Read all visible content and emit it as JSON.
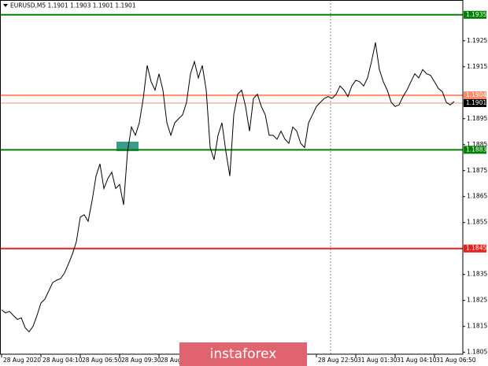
{
  "chart_data": {
    "type": "line",
    "title": "EURUSD,M5  1.1901 1.1903 1.1901 1.1901",
    "watermark": "instaforex",
    "xlim": [
      -0.4,
      117.2
    ],
    "xticks": [
      {
        "value": 0,
        "label": "28 Aug 2020"
      },
      {
        "value": 10,
        "label": "28 Aug 04:10"
      },
      {
        "value": 20,
        "label": "28 Aug 06:50"
      },
      {
        "value": 30,
        "label": "28 Aug 09:30"
      },
      {
        "value": 40,
        "label": "28 Aug"
      },
      {
        "value": 80,
        "label": "28 Aug 22:50"
      },
      {
        "value": 90,
        "label": "31 Aug 01:30"
      },
      {
        "value": 100,
        "label": "31 Aug 04:10"
      },
      {
        "value": 110,
        "label": "31 Aug 06:50"
      }
    ],
    "ylim": [
      1.18043,
      1.19407
    ],
    "yticks": [
      1.1925,
      1.1915,
      1.1895,
      1.1885,
      1.1875,
      1.1865,
      1.1855,
      1.1835,
      1.1825,
      1.1815,
      1.1805
    ],
    "series": [
      {
        "color": "#000000",
        "values": [
          1.18214,
          1.18202,
          1.18208,
          1.18192,
          1.18177,
          1.18183,
          1.18145,
          1.18129,
          1.18151,
          1.18192,
          1.1824,
          1.18255,
          1.18287,
          1.18319,
          1.18328,
          1.18334,
          1.18356,
          1.18391,
          1.18429,
          1.18476,
          1.18571,
          1.1858,
          1.18555,
          1.18634,
          1.18729,
          1.18776,
          1.18681,
          1.18719,
          1.18744,
          1.18681,
          1.18697,
          1.18618,
          1.18823,
          1.18918,
          1.18886,
          1.18934,
          1.19028,
          1.19155,
          1.19092,
          1.1906,
          1.19123,
          1.1906,
          1.18934,
          1.18886,
          1.18934,
          1.1895,
          1.18965,
          1.19013,
          1.19123,
          1.1917,
          1.19107,
          1.19155,
          1.1906,
          1.18839,
          1.18792,
          1.18886,
          1.18934,
          1.18823,
          1.18729,
          1.18965,
          1.19044,
          1.1906,
          1.18997,
          1.18902,
          1.19028,
          1.19044,
          1.18997,
          1.18965,
          1.18886,
          1.18886,
          1.18871,
          1.18902,
          1.18871,
          1.18855,
          1.18918,
          1.18902,
          1.18855,
          1.18839,
          1.18934,
          1.18965,
          1.18997,
          1.19013,
          1.19028,
          1.19035,
          1.19028,
          1.19044,
          1.19076,
          1.1906,
          1.19035,
          1.19076,
          1.19098,
          1.19092,
          1.19076,
          1.19107,
          1.1917,
          1.19243,
          1.19139,
          1.19092,
          1.1906,
          1.19013,
          1.18997,
          1.19003,
          1.19035,
          1.1906,
          1.19092,
          1.19123,
          1.19107,
          1.19139,
          1.19123,
          1.19117,
          1.19092,
          1.19066,
          1.19054,
          1.19013,
          1.19003,
          1.19016
        ]
      }
    ],
    "levels": [
      {
        "value": 1.1935,
        "color": "#008000",
        "label_bg": "#008000",
        "label_fg": "#ffffff"
      },
      {
        "value": 1.1904,
        "color": "#ff8c69",
        "label_bg": "#ff8c69",
        "label_fg": "#ffffff"
      },
      {
        "value": 1.1901,
        "color": "#f5c9bf",
        "label_bg": "#000000",
        "label_fg": "#ffffff"
      },
      {
        "value": 1.1883,
        "color": "#008000",
        "label_bg": "#008000",
        "label_fg": "#ffffff"
      },
      {
        "value": 1.1845,
        "color": "#e8201c",
        "label_bg": "#e8201c",
        "label_fg": "#ffffff"
      }
    ]
  }
}
